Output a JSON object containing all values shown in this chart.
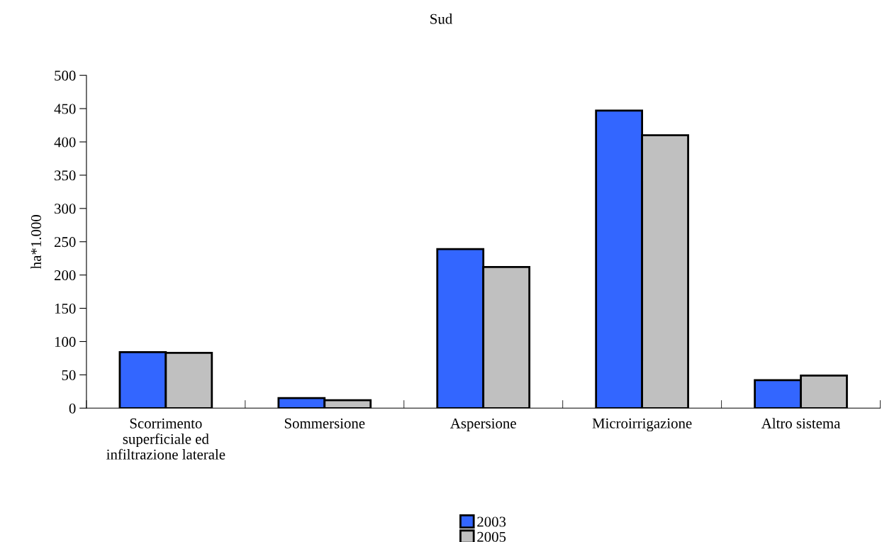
{
  "chart_data": {
    "type": "bar",
    "title": "Sud",
    "ylabel": "ha*1.000",
    "categories": [
      "Scorrimento\nsuperficiale ed\ninfiltrazione laterale",
      "Sommersione",
      "Aspersione",
      "Microirrigazione",
      "Altro sistema"
    ],
    "series": [
      {
        "name": "2003",
        "color": "#3366ff",
        "values": [
          84,
          15,
          239,
          447,
          42
        ]
      },
      {
        "name": "2005",
        "color": "#c0c0c0",
        "values": [
          83,
          12,
          212,
          410,
          49
        ]
      }
    ],
    "ylim": [
      0,
      500
    ],
    "yticks": [
      0,
      50,
      100,
      150,
      200,
      250,
      300,
      350,
      400,
      450,
      500
    ],
    "grid": false,
    "legend": "bottom"
  }
}
